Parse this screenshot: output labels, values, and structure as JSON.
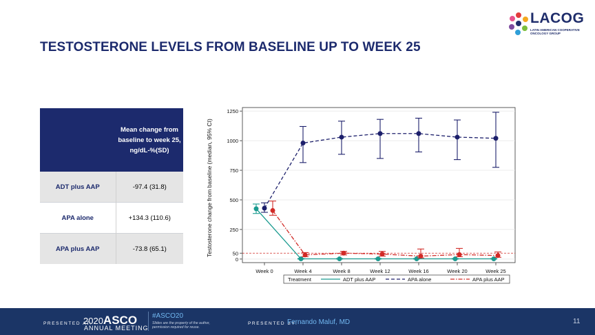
{
  "logo": {
    "word": "LACOG",
    "subtitle": "LATIN AMERICAN COOPERATIVE ONCOLOGY GROUP"
  },
  "slide_title": "TESTOSTERONE LEVELS FROM BASELINE UP TO WEEK 25",
  "table": {
    "header": "Mean change from baseline to week 25, ng/dL-%(SD)",
    "rows": [
      {
        "label": "ADT plus AAP",
        "value": "-97.4 (31.8)"
      },
      {
        "label": "APA alone",
        "value": "+134.3 (110.6)"
      },
      {
        "label": "APA plus AAP",
        "value": "-73.8 (65.1)"
      }
    ]
  },
  "chart_data": {
    "type": "line",
    "ylabel": "Testosterone change from baseline (median, 95% CI)",
    "xlabel": "",
    "categories": [
      "Week 0",
      "Week 4",
      "Week 8",
      "Week 12",
      "Week 16",
      "Week 20",
      "Week 25"
    ],
    "y_ticks": [
      0,
      50,
      250,
      500,
      750,
      1000,
      1250
    ],
    "ylim": [
      -30,
      1280
    ],
    "reference_line": 50,
    "legend_title": "Treatment",
    "legend_position": "bottom",
    "series": [
      {
        "name": "ADT plus AAP",
        "color": "#1a9a8f",
        "dash": "solid",
        "values": [
          425,
          2,
          2,
          2,
          2,
          2,
          2
        ],
        "lower": [
          385,
          0,
          0,
          0,
          0,
          0,
          0
        ],
        "upper": [
          465,
          5,
          5,
          5,
          5,
          5,
          5
        ]
      },
      {
        "name": "APA alone",
        "color": "#1c1f6b",
        "dash": "long",
        "values": [
          430,
          980,
          1030,
          1060,
          1060,
          1030,
          1020
        ],
        "lower": [
          395,
          815,
          885,
          850,
          905,
          840,
          775
        ],
        "upper": [
          475,
          1120,
          1165,
          1180,
          1190,
          1175,
          1240
        ]
      },
      {
        "name": "APA plus AAP",
        "color": "#d12a26",
        "dash": "dashdot",
        "values": [
          410,
          35,
          50,
          42,
          25,
          38,
          30
        ],
        "lower": [
          370,
          20,
          35,
          25,
          10,
          20,
          15
        ],
        "upper": [
          490,
          55,
          65,
          65,
          85,
          90,
          60
        ]
      }
    ]
  },
  "footer": {
    "presented_at": "PRESENTED AT:",
    "year": "2020",
    "asco": "ASCO",
    "annual_meeting": "ANNUAL MEETING",
    "hashtag": "#ASCO20",
    "note": "Slides are the property of the author, permission required for reuse.",
    "presented_by": "PRESENTED BY:",
    "presenter": "Fernando Maluf, MD",
    "page": "11"
  }
}
